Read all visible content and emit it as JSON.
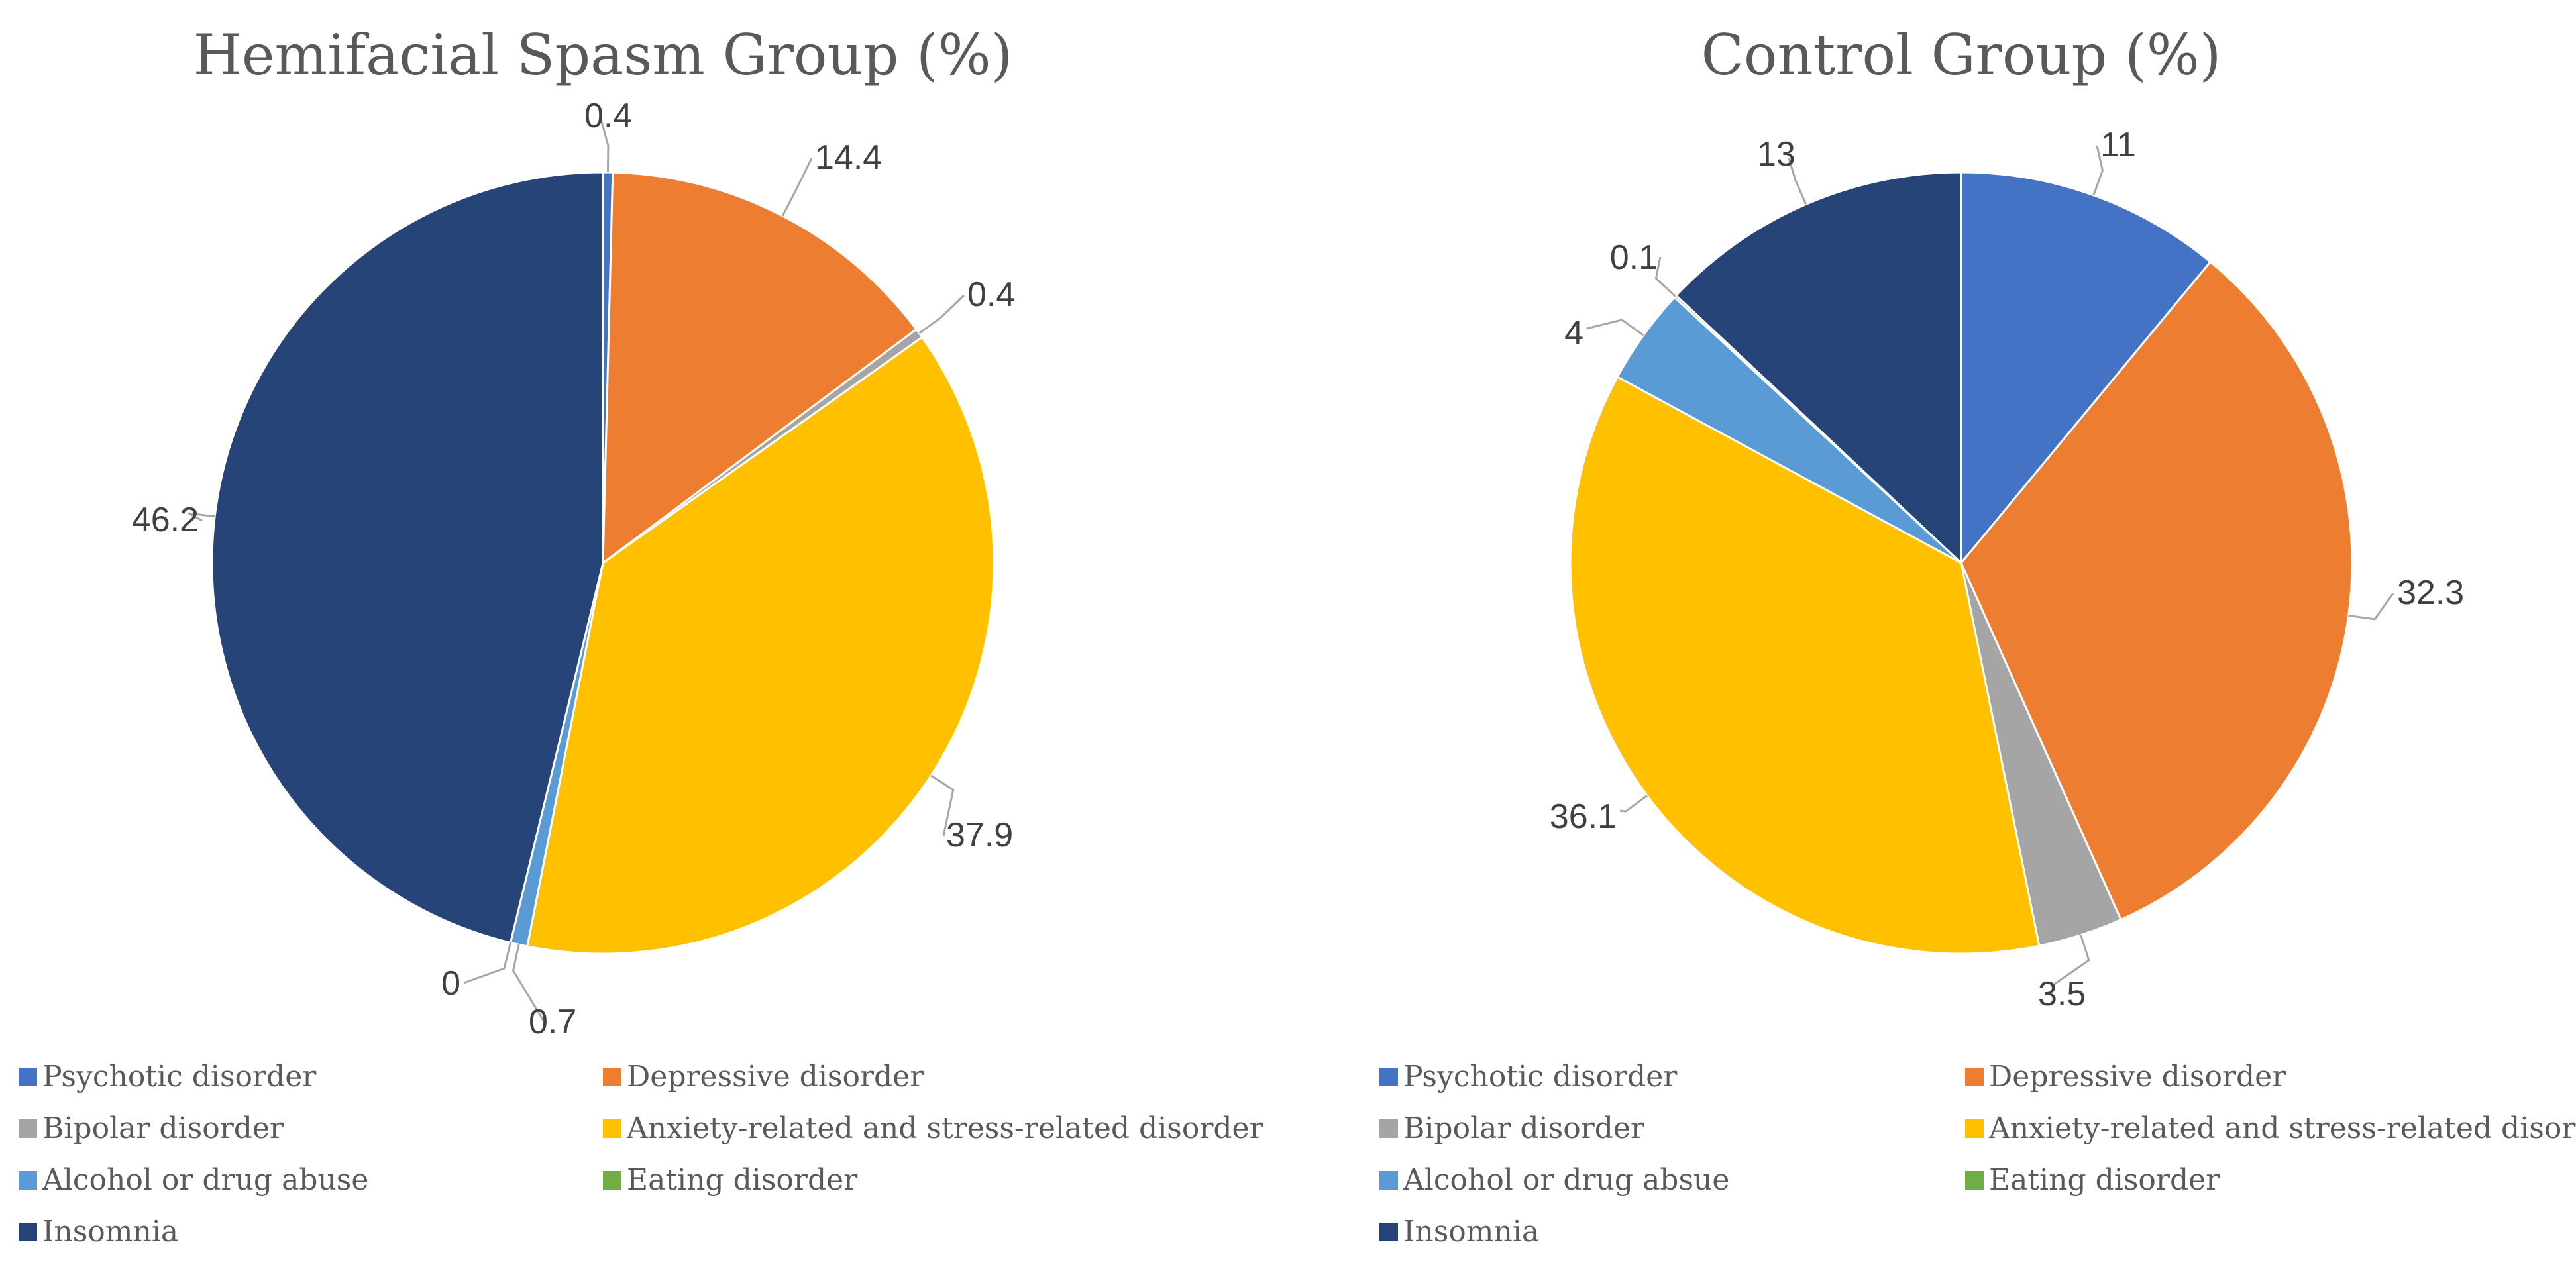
{
  "chart_data": [
    {
      "type": "pie",
      "title": "Hemifacial Spasm Group (%)",
      "categories": [
        "Psychotic disorder",
        "Depressive disorder",
        "Bipolar disorder",
        "Anxiety-related and stress-related disorder",
        "Alcohol or drug abuse",
        "Eating disorder",
        "Insomnia"
      ],
      "values": [
        0.4,
        14.4,
        0.4,
        37.9,
        0.7,
        0,
        46.2
      ],
      "value_labels": [
        "0.4",
        "14.4",
        "0.4",
        "37.9",
        "0.7",
        "0",
        "46.2"
      ],
      "colors": [
        "#4472c4",
        "#ed7d31",
        "#a5a5a5",
        "#ffc000",
        "#5b9bd5",
        "#70ad47",
        "#264478"
      ],
      "legend_position": "bottom"
    },
    {
      "type": "pie",
      "title": "Control Group (%)",
      "categories": [
        "Psychotic disorder",
        "Depressive disorder",
        "Bipolar disorder",
        "Anxiety-related and stress-related disorder",
        "Alcohol or drug absue",
        "Eating disorder",
        "Insomnia"
      ],
      "values": [
        11,
        32.3,
        3.5,
        36.1,
        4,
        0.1,
        13
      ],
      "value_labels": [
        "11",
        "32.3",
        "3.5",
        "36.1",
        "4",
        "0.1",
        "13"
      ],
      "colors": [
        "#4472c4",
        "#ed7d31",
        "#a5a5a5",
        "#ffc000",
        "#5b9bd5",
        "#70ad47",
        "#264478"
      ],
      "legend_position": "bottom"
    }
  ]
}
